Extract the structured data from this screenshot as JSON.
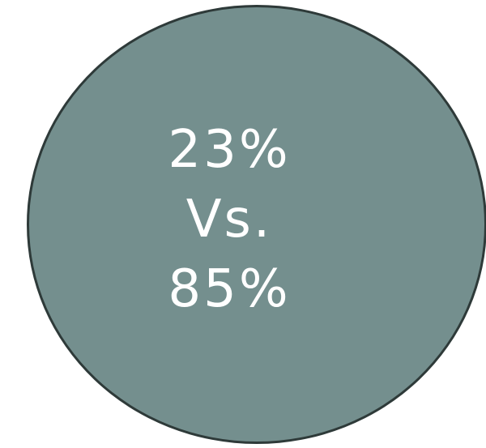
{
  "comparison": {
    "first_value": "23%",
    "separator": "Vs.",
    "second_value": "85%"
  },
  "colors": {
    "circle_fill": "#748f8e",
    "circle_border": "#2e3a39",
    "text": "#ffffff",
    "background": "#ffffff"
  }
}
